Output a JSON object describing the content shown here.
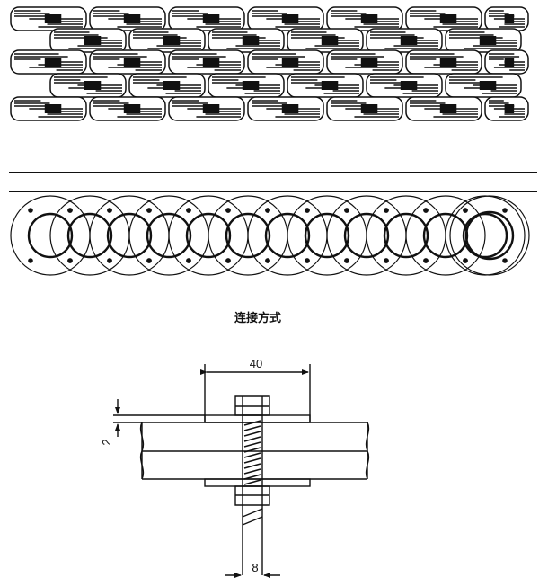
{
  "figure": {
    "caption": "连接方式",
    "dimensions": {
      "width_label": "40",
      "thickness_label": "2",
      "bolt_diameter_label": "8"
    }
  },
  "colors": {
    "line": "#111111",
    "background": "#ffffff"
  }
}
